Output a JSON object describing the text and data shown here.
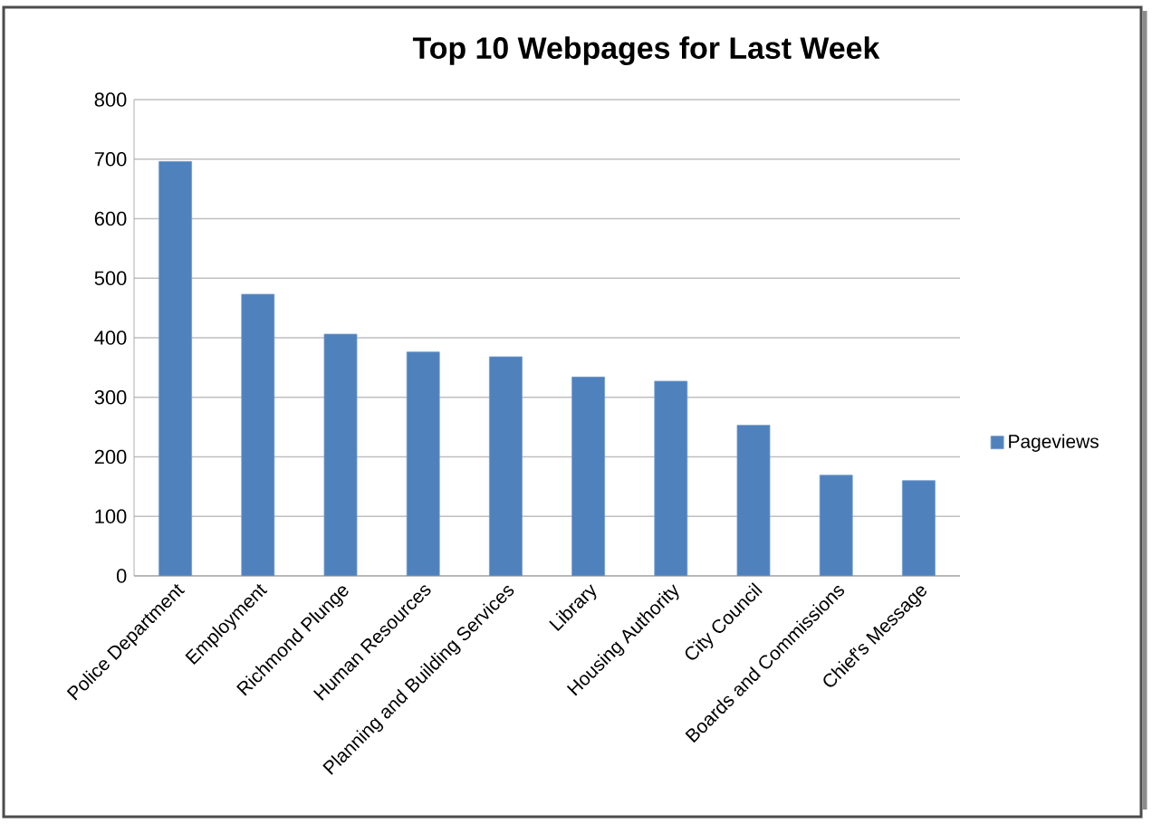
{
  "chart_data": {
    "type": "bar",
    "title": "Top 10 Webpages for Last Week",
    "categories": [
      "Police Department",
      "Employment",
      "Richmond Plunge",
      "Human Resources",
      "Planning and Building Services",
      "Library",
      "Housing Authority",
      "City Council",
      "Boards and Commissions",
      "Chief's Message"
    ],
    "series": [
      {
        "name": "Pageviews",
        "color": "#4f81bd",
        "values": [
          696,
          473,
          406,
          376,
          368,
          334,
          327,
          253,
          169,
          160
        ]
      }
    ],
    "ylim": [
      0,
      800
    ],
    "yticks": [
      0,
      100,
      200,
      300,
      400,
      500,
      600,
      700,
      800
    ],
    "grid": "y",
    "legend": "right"
  }
}
